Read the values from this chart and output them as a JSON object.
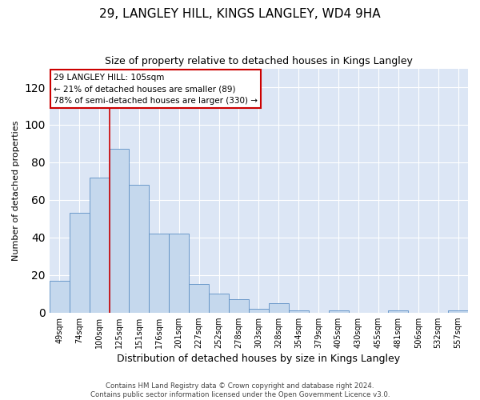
{
  "title": "29, LANGLEY HILL, KINGS LANGLEY, WD4 9HA",
  "subtitle": "Size of property relative to detached houses in Kings Langley",
  "xlabel": "Distribution of detached houses by size in Kings Langley",
  "ylabel": "Number of detached properties",
  "categories": [
    "49sqm",
    "74sqm",
    "100sqm",
    "125sqm",
    "151sqm",
    "176sqm",
    "201sqm",
    "227sqm",
    "252sqm",
    "278sqm",
    "303sqm",
    "328sqm",
    "354sqm",
    "379sqm",
    "405sqm",
    "430sqm",
    "455sqm",
    "481sqm",
    "506sqm",
    "532sqm",
    "557sqm"
  ],
  "values": [
    17,
    53,
    72,
    87,
    68,
    42,
    42,
    15,
    10,
    7,
    2,
    5,
    1,
    0,
    1,
    0,
    0,
    1,
    0,
    0,
    1
  ],
  "bar_color": "#c5d8ed",
  "bar_edge_color": "#5b8ec4",
  "background_color": "#dce6f5",
  "ylim": [
    0,
    130
  ],
  "yticks": [
    0,
    20,
    40,
    60,
    80,
    100,
    120
  ],
  "red_line_x": 2.5,
  "annotation_text": "29 LANGLEY HILL: 105sqm\n← 21% of detached houses are smaller (89)\n78% of semi-detached houses are larger (330) →",
  "annotation_box_color": "#ffffff",
  "annotation_box_edge_color": "#cc0000",
  "footer_line1": "Contains HM Land Registry data © Crown copyright and database right 2024.",
  "footer_line2": "Contains public sector information licensed under the Open Government Licence v3.0."
}
